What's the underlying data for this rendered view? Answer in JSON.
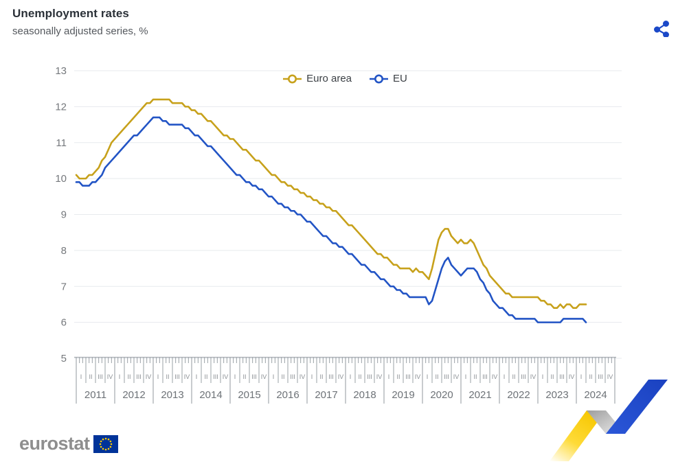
{
  "header": {
    "title": "Unemployment rates",
    "subtitle": "seasonally adjusted series, %"
  },
  "footer": {
    "brand": "eurostat"
  },
  "colors": {
    "euro_area": "#C7A11B",
    "eu": "#2254C5",
    "share_icon": "#1B49C8",
    "flag_blue": "#003399",
    "flag_stars": "#FFCC00",
    "gridline": "#e7eaee",
    "axis_line": "#a8adb2",
    "tick": "#9aa0a6",
    "y_label": "#75787c",
    "quarter_label": "#898e93",
    "year_label": "#6d7277"
  },
  "chart_data": {
    "type": "line",
    "title": "Unemployment rates",
    "subtitle": "seasonally adjusted series, %",
    "unit": "%",
    "frequency": "monthly",
    "start": "2011-01",
    "end": "2024-04",
    "ylim": [
      5,
      13
    ],
    "yticks": [
      5,
      6,
      7,
      8,
      9,
      10,
      11,
      12,
      13
    ],
    "grid": true,
    "legend_position": "top-center",
    "x_years": [
      2011,
      2012,
      2013,
      2014,
      2015,
      2016,
      2017,
      2018,
      2019,
      2020,
      2021,
      2022,
      2023,
      2024
    ],
    "x_quarter_labels": [
      "I",
      "II",
      "III",
      "IV"
    ],
    "series": [
      {
        "name": "Euro area",
        "color": "#C7A11B",
        "values": [
          10.1,
          10.0,
          10.0,
          10.0,
          10.1,
          10.1,
          10.2,
          10.3,
          10.5,
          10.6,
          10.8,
          11.0,
          11.1,
          11.2,
          11.3,
          11.4,
          11.5,
          11.6,
          11.7,
          11.8,
          11.9,
          12.0,
          12.1,
          12.1,
          12.2,
          12.2,
          12.2,
          12.2,
          12.2,
          12.2,
          12.1,
          12.1,
          12.1,
          12.1,
          12.0,
          12.0,
          11.9,
          11.9,
          11.8,
          11.8,
          11.7,
          11.6,
          11.6,
          11.5,
          11.4,
          11.3,
          11.2,
          11.2,
          11.1,
          11.1,
          11.0,
          10.9,
          10.8,
          10.8,
          10.7,
          10.6,
          10.5,
          10.5,
          10.4,
          10.3,
          10.2,
          10.1,
          10.1,
          10.0,
          9.9,
          9.9,
          9.8,
          9.8,
          9.7,
          9.7,
          9.6,
          9.6,
          9.5,
          9.5,
          9.4,
          9.4,
          9.3,
          9.3,
          9.2,
          9.2,
          9.1,
          9.1,
          9.0,
          8.9,
          8.8,
          8.7,
          8.7,
          8.6,
          8.5,
          8.4,
          8.3,
          8.2,
          8.1,
          8.0,
          7.9,
          7.9,
          7.8,
          7.8,
          7.7,
          7.6,
          7.6,
          7.5,
          7.5,
          7.5,
          7.5,
          7.4,
          7.5,
          7.4,
          7.4,
          7.3,
          7.2,
          7.5,
          7.9,
          8.3,
          8.5,
          8.6,
          8.6,
          8.4,
          8.3,
          8.2,
          8.3,
          8.2,
          8.2,
          8.3,
          8.2,
          8.0,
          7.8,
          7.6,
          7.5,
          7.3,
          7.2,
          7.1,
          7.0,
          6.9,
          6.8,
          6.8,
          6.7,
          6.7,
          6.7,
          6.7,
          6.7,
          6.7,
          6.7,
          6.7,
          6.7,
          6.6,
          6.6,
          6.5,
          6.5,
          6.4,
          6.4,
          6.5,
          6.4,
          6.5,
          6.5,
          6.4,
          6.4,
          6.5,
          6.5,
          6.5
        ]
      },
      {
        "name": "EU",
        "color": "#2254C5",
        "values": [
          9.9,
          9.9,
          9.8,
          9.8,
          9.8,
          9.9,
          9.9,
          10.0,
          10.1,
          10.3,
          10.4,
          10.5,
          10.6,
          10.7,
          10.8,
          10.9,
          11.0,
          11.1,
          11.2,
          11.2,
          11.3,
          11.4,
          11.5,
          11.6,
          11.7,
          11.7,
          11.7,
          11.6,
          11.6,
          11.5,
          11.5,
          11.5,
          11.5,
          11.5,
          11.4,
          11.4,
          11.3,
          11.2,
          11.2,
          11.1,
          11.0,
          10.9,
          10.9,
          10.8,
          10.7,
          10.6,
          10.5,
          10.4,
          10.3,
          10.2,
          10.1,
          10.1,
          10.0,
          9.9,
          9.9,
          9.8,
          9.8,
          9.7,
          9.7,
          9.6,
          9.5,
          9.5,
          9.4,
          9.3,
          9.3,
          9.2,
          9.2,
          9.1,
          9.1,
          9.0,
          9.0,
          8.9,
          8.8,
          8.8,
          8.7,
          8.6,
          8.5,
          8.4,
          8.4,
          8.3,
          8.2,
          8.2,
          8.1,
          8.1,
          8.0,
          7.9,
          7.9,
          7.8,
          7.7,
          7.6,
          7.6,
          7.5,
          7.4,
          7.4,
          7.3,
          7.2,
          7.2,
          7.1,
          7.0,
          7.0,
          6.9,
          6.9,
          6.8,
          6.8,
          6.7,
          6.7,
          6.7,
          6.7,
          6.7,
          6.7,
          6.5,
          6.6,
          6.9,
          7.2,
          7.5,
          7.7,
          7.8,
          7.6,
          7.5,
          7.4,
          7.3,
          7.4,
          7.5,
          7.5,
          7.5,
          7.4,
          7.2,
          7.1,
          6.9,
          6.8,
          6.6,
          6.5,
          6.4,
          6.4,
          6.3,
          6.2,
          6.2,
          6.1,
          6.1,
          6.1,
          6.1,
          6.1,
          6.1,
          6.1,
          6.0,
          6.0,
          6.0,
          6.0,
          6.0,
          6.0,
          6.0,
          6.0,
          6.1,
          6.1,
          6.1,
          6.1,
          6.1,
          6.1,
          6.1,
          6.0
        ]
      }
    ]
  }
}
